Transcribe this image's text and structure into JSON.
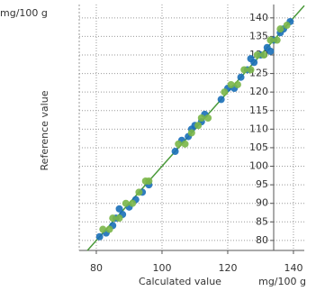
{
  "chart_data": {
    "type": "scatter",
    "x_label": "Calculated value",
    "x_unit": "mg/100 g",
    "y_label": "Reference value",
    "y_unit": "mg/100 g",
    "xlim": [
      74.8,
      143.3
    ],
    "ylim": [
      77.3,
      143.6
    ],
    "xticks": [
      80,
      100,
      120,
      140
    ],
    "yticks": [
      80,
      85,
      90,
      95,
      100,
      105,
      110,
      115,
      120,
      125,
      130,
      135,
      140
    ],
    "grid": true,
    "series": [
      {
        "color": "#1a6fb8",
        "x": [
          81,
          83,
          85,
          86,
          88,
          87,
          90,
          92,
          94,
          96,
          104,
          106,
          108,
          109,
          110,
          112,
          113,
          118,
          120,
          122,
          124,
          126,
          128,
          130,
          132,
          134,
          136,
          137,
          139,
          133,
          127
        ],
        "values": [
          81,
          82,
          84,
          86,
          87,
          88.5,
          89,
          91,
          93,
          95,
          104,
          107,
          108,
          110,
          111,
          112,
          114,
          118,
          121,
          121,
          124,
          126,
          128,
          130,
          132,
          134,
          136,
          137,
          139,
          131,
          129
        ]
      },
      {
        "color": "#7ab648",
        "x": [
          82,
          84,
          85,
          87,
          89,
          91,
          93,
          95,
          96,
          105,
          107,
          109,
          111,
          112,
          114,
          119,
          121,
          123,
          125,
          127,
          129,
          131,
          133,
          135,
          136,
          138
        ],
        "values": [
          83,
          83,
          86,
          86,
          90,
          90,
          93,
          96,
          96,
          106,
          106,
          109,
          111,
          113,
          113,
          120,
          122,
          122,
          126,
          126,
          130,
          130,
          134,
          134,
          137,
          138
        ]
      }
    ]
  }
}
